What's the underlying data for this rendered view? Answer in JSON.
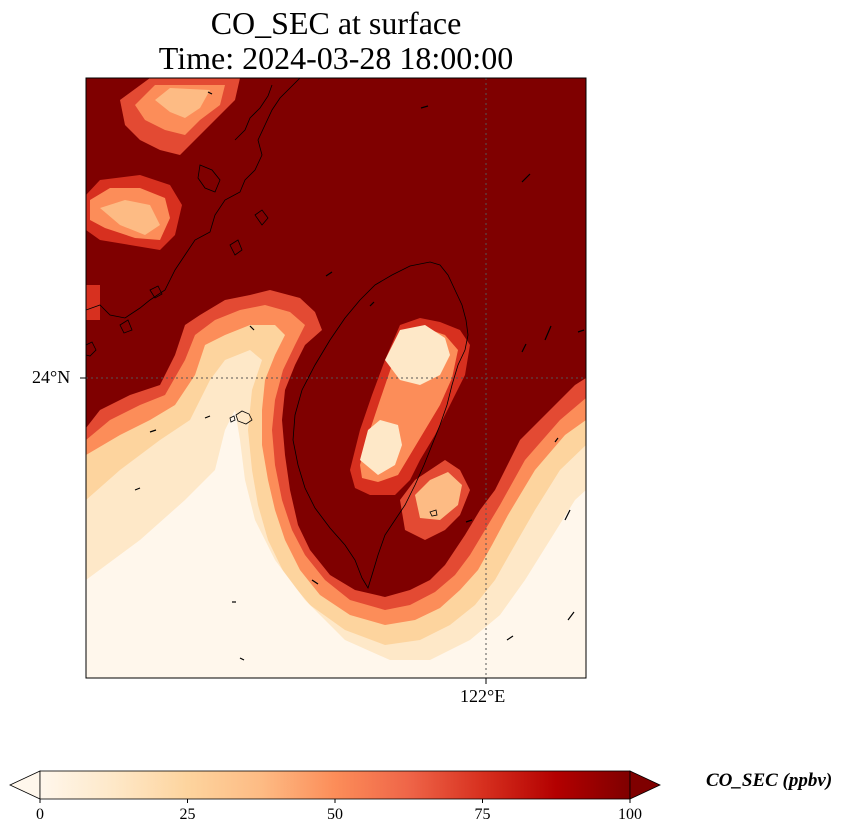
{
  "title": {
    "line1": "CO_SEC at surface",
    "line2": "Time: 2024-03-28 18:00:00"
  },
  "axes": {
    "lat_tick": "24°N",
    "lon_tick": "122°E"
  },
  "colorbar": {
    "label": "CO_SEC (ppbv)",
    "ticks": [
      "0",
      "25",
      "50",
      "75",
      "100"
    ],
    "min": 0,
    "max": 100,
    "colormap": "OrRd",
    "extend": "both"
  },
  "colors": {
    "high": "#7f0000",
    "mid_high": "#d7301f",
    "mid": "#fc8d59",
    "low_mid": "#fdd49e",
    "low": "#fff7ec"
  }
}
